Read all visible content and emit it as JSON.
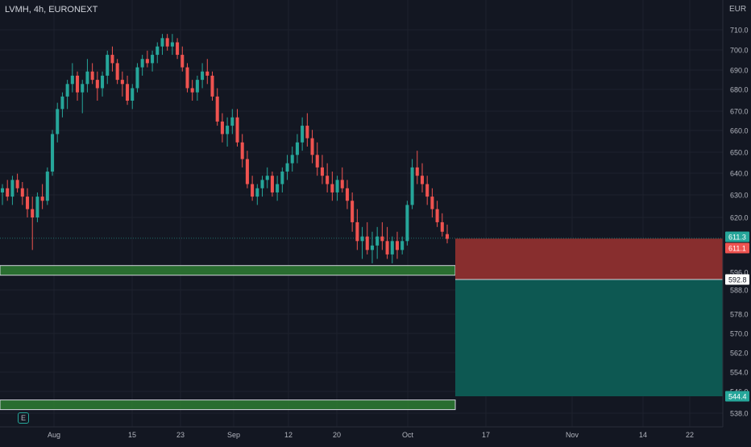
{
  "header": {
    "title": "LVMH, 4h, EURONEXT",
    "currency": "EUR"
  },
  "event_marker": "E",
  "colors": {
    "background": "#131722",
    "grid": "#1e222d",
    "up": "#26a69a",
    "down": "#ef5350",
    "text": "#b2b5be",
    "zone": "#2e7d32",
    "stop": "#8e2f2f",
    "target": "#0d5c55"
  },
  "chart_data": {
    "type": "candlestick",
    "y_ticks": [
      "710.0",
      "700.0",
      "690.0",
      "680.0",
      "670.0",
      "660.0",
      "650.0",
      "640.0",
      "630.0",
      "620.0",
      "596.0",
      "588.0",
      "578.0",
      "570.0",
      "562.0",
      "554.0",
      "546.0",
      "538.0"
    ],
    "x_ticks": [
      "Aug",
      "15",
      "23",
      "Sep",
      "12",
      "20",
      "Oct",
      "17",
      "Nov",
      "14",
      "22"
    ],
    "price_labels": [
      {
        "text": "611.3",
        "kind": "last"
      },
      {
        "text": "611.1",
        "kind": "stop"
      },
      {
        "text": "592.8",
        "kind": "entry"
      },
      {
        "text": "544.4",
        "kind": "target"
      }
    ],
    "candles": [
      [
        632,
        636,
        626,
        634
      ],
      [
        634,
        638,
        628,
        630
      ],
      [
        630,
        640,
        626,
        638
      ],
      [
        638,
        641,
        632,
        634
      ],
      [
        634,
        637,
        626,
        630
      ],
      [
        630,
        634,
        620,
        624
      ],
      [
        624,
        630,
        606,
        620
      ],
      [
        620,
        632,
        618,
        630
      ],
      [
        630,
        636,
        624,
        628
      ],
      [
        628,
        644,
        626,
        642
      ],
      [
        642,
        662,
        640,
        660
      ],
      [
        660,
        675,
        656,
        672
      ],
      [
        672,
        680,
        668,
        678
      ],
      [
        678,
        686,
        672,
        684
      ],
      [
        684,
        694,
        680,
        688
      ],
      [
        688,
        690,
        676,
        680
      ],
      [
        680,
        686,
        670,
        684
      ],
      [
        684,
        696,
        680,
        690
      ],
      [
        690,
        694,
        684,
        686
      ],
      [
        686,
        690,
        676,
        682
      ],
      [
        682,
        690,
        678,
        688
      ],
      [
        688,
        700,
        684,
        698
      ],
      [
        698,
        702,
        690,
        694
      ],
      [
        694,
        696,
        684,
        686
      ],
      [
        686,
        690,
        678,
        684
      ],
      [
        684,
        688,
        674,
        676
      ],
      [
        676,
        684,
        672,
        682
      ],
      [
        682,
        694,
        680,
        692
      ],
      [
        692,
        698,
        688,
        696
      ],
      [
        696,
        700,
        692,
        694
      ],
      [
        694,
        700,
        690,
        698
      ],
      [
        698,
        704,
        694,
        702
      ],
      [
        702,
        708,
        698,
        706
      ],
      [
        706,
        708,
        700,
        702
      ],
      [
        702,
        708,
        698,
        704
      ],
      [
        704,
        706,
        696,
        698
      ],
      [
        698,
        702,
        690,
        692
      ],
      [
        692,
        694,
        680,
        682
      ],
      [
        682,
        686,
        676,
        680
      ],
      [
        680,
        688,
        676,
        686
      ],
      [
        686,
        694,
        682,
        690
      ],
      [
        690,
        696,
        684,
        688
      ],
      [
        688,
        690,
        676,
        678
      ],
      [
        678,
        682,
        664,
        666
      ],
      [
        666,
        670,
        656,
        660
      ],
      [
        660,
        668,
        654,
        664
      ],
      [
        664,
        672,
        660,
        668
      ],
      [
        668,
        672,
        654,
        656
      ],
      [
        656,
        660,
        644,
        648
      ],
      [
        648,
        652,
        634,
        636
      ],
      [
        636,
        640,
        628,
        630
      ],
      [
        630,
        636,
        626,
        634
      ],
      [
        634,
        640,
        630,
        638
      ],
      [
        638,
        644,
        634,
        640
      ],
      [
        640,
        642,
        630,
        632
      ],
      [
        632,
        640,
        628,
        636
      ],
      [
        636,
        644,
        632,
        642
      ],
      [
        642,
        650,
        638,
        646
      ],
      [
        646,
        654,
        642,
        650
      ],
      [
        650,
        660,
        646,
        656
      ],
      [
        656,
        668,
        652,
        664
      ],
      [
        664,
        670,
        654,
        658
      ],
      [
        658,
        662,
        646,
        650
      ],
      [
        650,
        656,
        640,
        644
      ],
      [
        644,
        650,
        636,
        640
      ],
      [
        640,
        646,
        632,
        636
      ],
      [
        636,
        642,
        628,
        632
      ],
      [
        632,
        640,
        628,
        638
      ],
      [
        638,
        644,
        632,
        634
      ],
      [
        634,
        638,
        624,
        628
      ],
      [
        628,
        632,
        614,
        618
      ],
      [
        618,
        624,
        606,
        610
      ],
      [
        610,
        616,
        602,
        612
      ],
      [
        612,
        618,
        604,
        606
      ],
      [
        606,
        614,
        600,
        608
      ],
      [
        608,
        616,
        602,
        612
      ],
      [
        612,
        618,
        606,
        610
      ],
      [
        610,
        616,
        602,
        604
      ],
      [
        604,
        612,
        600,
        610
      ],
      [
        610,
        614,
        602,
        606
      ],
      [
        606,
        612,
        604,
        610
      ],
      [
        610,
        628,
        608,
        626
      ],
      [
        626,
        648,
        624,
        644
      ],
      [
        644,
        652,
        636,
        640
      ],
      [
        640,
        646,
        632,
        636
      ],
      [
        636,
        640,
        626,
        630
      ],
      [
        630,
        634,
        620,
        624
      ],
      [
        624,
        628,
        616,
        618
      ],
      [
        618,
        622,
        612,
        614
      ],
      [
        613,
        617,
        609,
        611
      ]
    ],
    "zones": [
      {
        "low": 596,
        "high": 599
      },
      {
        "low": 540,
        "high": 543
      }
    ],
    "position": {
      "stop": 611.1,
      "entry": 592.8,
      "target": 544.4
    }
  }
}
